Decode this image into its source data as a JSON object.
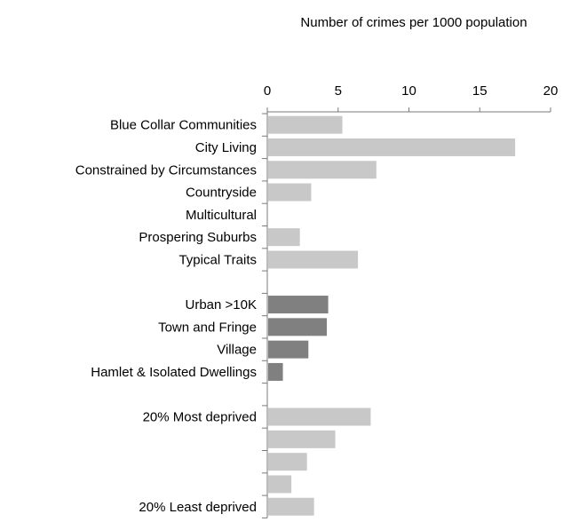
{
  "chart_data": {
    "type": "bar",
    "orientation": "horizontal",
    "title": "Number of crimes per 1000 population",
    "xlabel": "",
    "ylabel": "",
    "xlim": [
      0,
      20
    ],
    "x_ticks": [
      0,
      5,
      10,
      15,
      20
    ],
    "x_tick_labels": [
      "0",
      "5",
      "10",
      "15",
      "20"
    ],
    "axis_position": "top",
    "grid": false,
    "colors": {
      "light": "#c8c8c8",
      "dark": "#808080"
    },
    "categories": [
      "Blue Collar Communities",
      "City Living",
      "Constrained by Circumstances",
      "Countryside",
      "Multicultural",
      "Prospering Suburbs",
      "Typical Traits",
      "",
      "Urban >10K",
      "Town and Fringe",
      "Village",
      "Hamlet & Isolated Dwellings",
      "",
      "20% Most deprived",
      "",
      "",
      "",
      "20% Least deprived"
    ],
    "values": [
      5.3,
      17.5,
      7.7,
      3.1,
      null,
      2.3,
      6.4,
      null,
      4.3,
      4.2,
      2.9,
      1.1,
      null,
      7.3,
      4.8,
      2.8,
      1.7,
      3.3
    ],
    "bar_color_keys": [
      "light",
      "light",
      "light",
      "light",
      "light",
      "light",
      "light",
      "",
      "dark",
      "dark",
      "dark",
      "dark",
      "",
      "light",
      "light",
      "light",
      "light",
      "light"
    ]
  }
}
